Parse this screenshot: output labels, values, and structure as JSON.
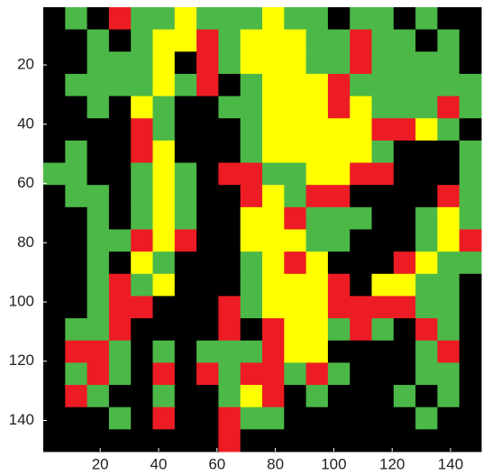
{
  "chart_data": {
    "type": "heatmap",
    "xlim": [
      0.5,
      150.5
    ],
    "ylim": [
      0.5,
      150.5
    ],
    "y_reversed": true,
    "xticks": [
      20,
      40,
      60,
      80,
      100,
      120,
      140
    ],
    "yticks": [
      20,
      40,
      60,
      80,
      100,
      120,
      140
    ],
    "colormap": [
      "#000000",
      "#4cb848",
      "#ffff00",
      "#ed1c24"
    ],
    "values": [
      [
        0,
        1,
        0,
        3,
        1,
        1,
        2,
        1,
        1,
        1,
        2,
        1,
        1,
        0,
        1,
        1,
        0,
        1,
        0,
        0
      ],
      [
        0,
        0,
        1,
        0,
        1,
        2,
        2,
        3,
        1,
        2,
        2,
        2,
        1,
        1,
        3,
        1,
        1,
        0,
        1,
        0
      ],
      [
        0,
        0,
        1,
        1,
        1,
        2,
        0,
        3,
        1,
        2,
        2,
        2,
        1,
        1,
        3,
        1,
        1,
        1,
        1,
        0
      ],
      [
        0,
        1,
        1,
        1,
        1,
        2,
        1,
        3,
        0,
        1,
        2,
        2,
        2,
        3,
        1,
        1,
        1,
        1,
        1,
        1
      ],
      [
        0,
        0,
        1,
        0,
        2,
        1,
        0,
        0,
        1,
        1,
        2,
        2,
        2,
        3,
        2,
        1,
        1,
        1,
        3,
        1
      ],
      [
        0,
        0,
        0,
        0,
        3,
        1,
        0,
        0,
        0,
        1,
        2,
        2,
        2,
        2,
        2,
        3,
        3,
        2,
        1,
        0
      ],
      [
        0,
        1,
        0,
        0,
        3,
        2,
        0,
        0,
        0,
        1,
        2,
        2,
        2,
        2,
        2,
        1,
        0,
        0,
        0,
        1
      ],
      [
        1,
        1,
        0,
        0,
        1,
        2,
        1,
        0,
        3,
        3,
        1,
        1,
        2,
        2,
        3,
        3,
        0,
        0,
        0,
        1
      ],
      [
        0,
        1,
        1,
        0,
        1,
        2,
        1,
        0,
        0,
        3,
        2,
        1,
        3,
        3,
        0,
        0,
        0,
        0,
        3,
        1
      ],
      [
        0,
        0,
        1,
        0,
        1,
        2,
        1,
        0,
        0,
        2,
        2,
        3,
        1,
        1,
        1,
        0,
        0,
        1,
        2,
        1
      ],
      [
        0,
        0,
        1,
        1,
        3,
        2,
        3,
        0,
        0,
        2,
        2,
        2,
        1,
        1,
        0,
        0,
        0,
        1,
        2,
        3
      ],
      [
        0,
        0,
        1,
        0,
        2,
        1,
        0,
        0,
        0,
        1,
        2,
        3,
        2,
        0,
        0,
        0,
        3,
        2,
        1,
        1
      ],
      [
        0,
        0,
        1,
        3,
        1,
        2,
        0,
        0,
        0,
        1,
        2,
        2,
        2,
        3,
        0,
        2,
        2,
        1,
        1,
        0
      ],
      [
        0,
        0,
        1,
        3,
        3,
        0,
        0,
        0,
        3,
        1,
        2,
        2,
        2,
        3,
        3,
        3,
        3,
        1,
        1,
        0
      ],
      [
        0,
        1,
        1,
        3,
        0,
        0,
        0,
        0,
        3,
        0,
        3,
        2,
        2,
        1,
        3,
        1,
        0,
        3,
        1,
        0
      ],
      [
        0,
        3,
        3,
        1,
        0,
        1,
        0,
        1,
        1,
        1,
        3,
        2,
        2,
        0,
        0,
        0,
        0,
        1,
        3,
        0
      ],
      [
        0,
        1,
        3,
        1,
        0,
        3,
        0,
        3,
        1,
        3,
        3,
        1,
        3,
        1,
        0,
        0,
        0,
        1,
        1,
        0
      ],
      [
        0,
        3,
        1,
        0,
        0,
        1,
        0,
        0,
        1,
        2,
        3,
        0,
        1,
        0,
        0,
        0,
        1,
        0,
        1,
        0
      ],
      [
        0,
        0,
        0,
        1,
        0,
        3,
        0,
        0,
        3,
        1,
        1,
        0,
        0,
        0,
        0,
        0,
        0,
        1,
        0,
        0
      ],
      [
        0,
        0,
        0,
        0,
        0,
        0,
        0,
        0,
        3,
        0,
        0,
        0,
        0,
        0,
        0,
        0,
        0,
        0,
        0,
        0
      ]
    ]
  }
}
